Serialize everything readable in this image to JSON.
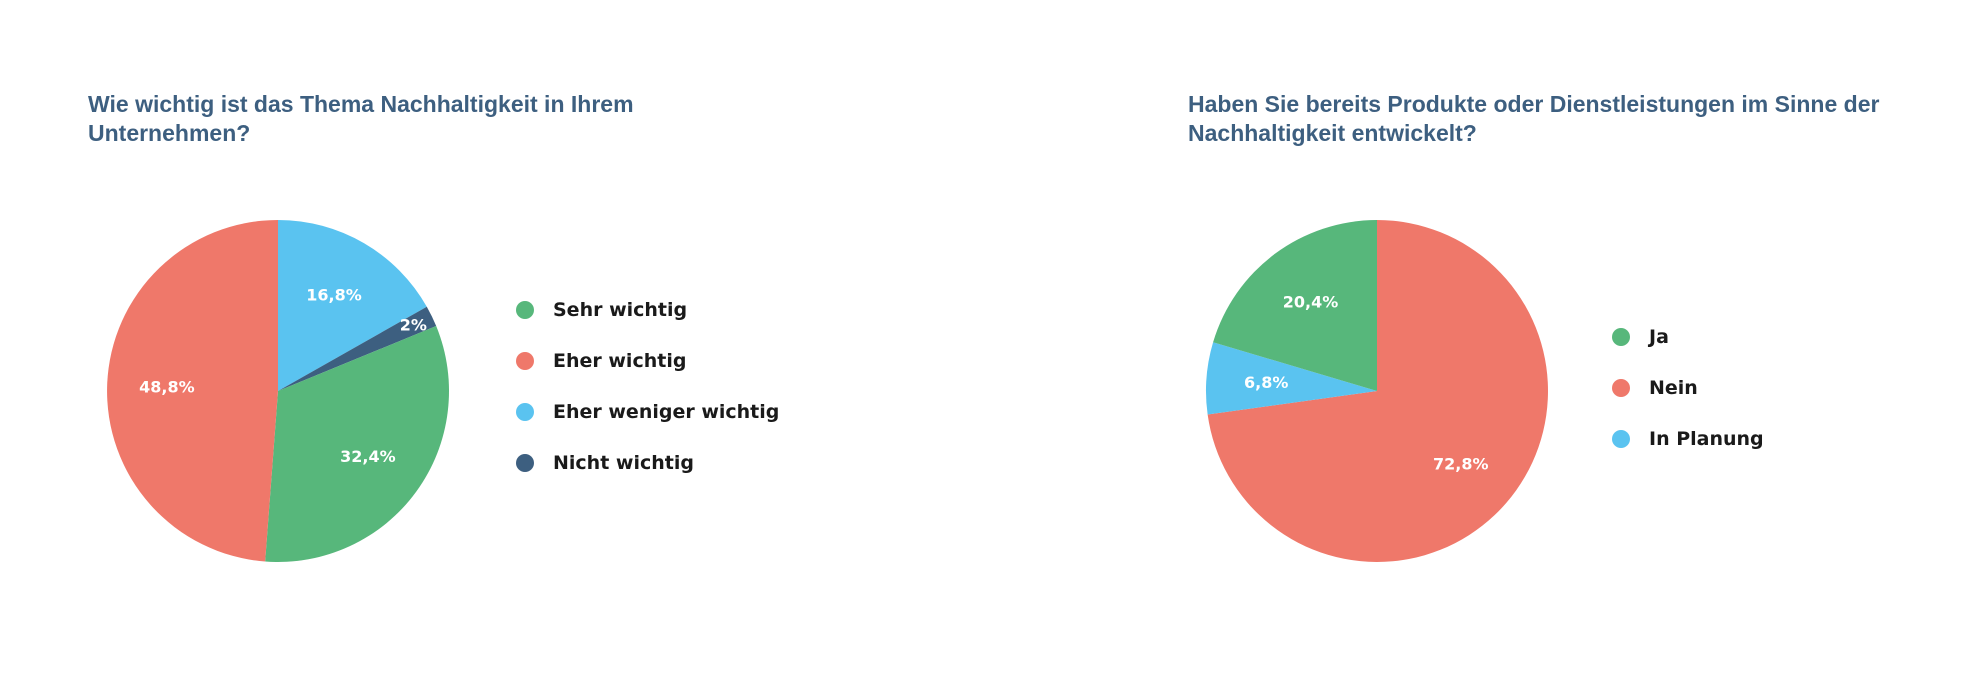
{
  "chart_data": [
    {
      "type": "pie",
      "title": "Wie wichtig ist das Thema Nachhaltigkeit in Ihrem Unternehmen?",
      "legend_position": "right",
      "slices": [
        {
          "label": "Eher weniger wichtig",
          "value": 16.8,
          "value_label": "16,8%",
          "color": "#5ac3f0"
        },
        {
          "label": "Nicht wichtig",
          "value": 2.0,
          "value_label": "2%",
          "color": "#3d5f80"
        },
        {
          "label": "Sehr wichtig",
          "value": 32.4,
          "value_label": "32,4%",
          "color": "#57b77b"
        },
        {
          "label": "Eher wichtig",
          "value": 48.8,
          "value_label": "48,8%",
          "color": "#ef786a"
        }
      ],
      "legend": [
        {
          "label": "Sehr wichtig",
          "color": "#57b77b"
        },
        {
          "label": "Eher wichtig",
          "color": "#ef786a"
        },
        {
          "label": "Eher weniger wichtig",
          "color": "#5ac3f0"
        },
        {
          "label": "Nicht wichtig",
          "color": "#3d5f80"
        }
      ]
    },
    {
      "type": "pie",
      "title": "Haben Sie bereits Produkte oder Dienstleistungen im Sinne der Nachhaltigkeit entwickelt?",
      "legend_position": "right",
      "slices": [
        {
          "label": "Nein",
          "value": 72.8,
          "value_label": "72,8%",
          "color": "#ef786a"
        },
        {
          "label": "In Planung",
          "value": 6.8,
          "value_label": "6,8%",
          "color": "#5ac3f0"
        },
        {
          "label": "Ja",
          "value": 20.4,
          "value_label": "20,4%",
          "color": "#57b77b"
        }
      ],
      "legend": [
        {
          "label": "Ja",
          "color": "#57b77b"
        },
        {
          "label": "Nein",
          "color": "#ef786a"
        },
        {
          "label": "In Planung",
          "color": "#5ac3f0"
        }
      ]
    }
  ]
}
